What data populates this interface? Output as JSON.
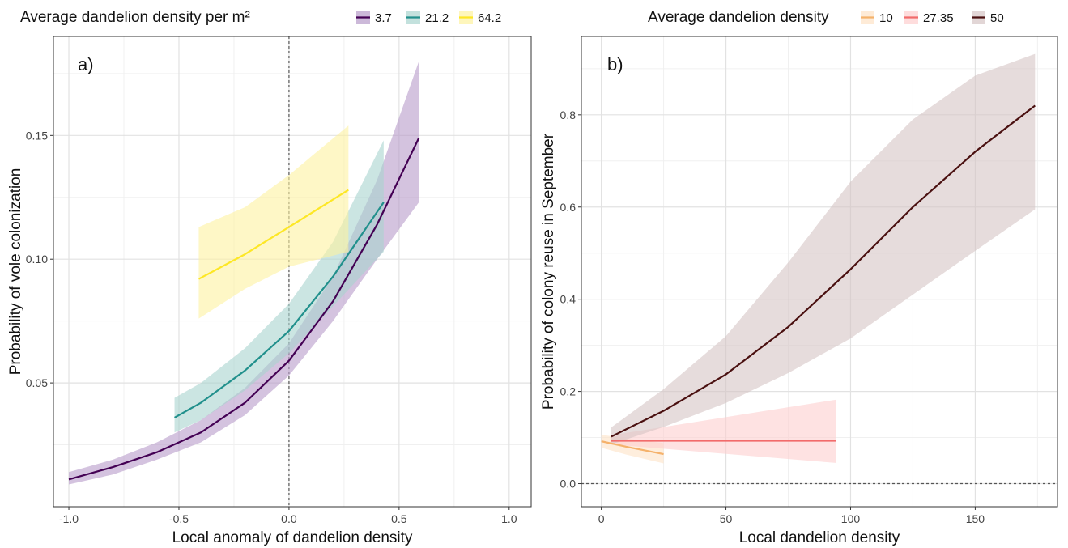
{
  "chart_data": [
    {
      "type": "line",
      "panel_label": "a)",
      "xlabel": "Local anomaly of dandelion density",
      "ylabel": "Probability of vole colonization",
      "xlim": [
        -1.07,
        1.1
      ],
      "ylim": [
        0.0,
        0.19
      ],
      "xticks": [
        -1.0,
        -0.5,
        0.0,
        0.5,
        1.0
      ],
      "xtick_labels": [
        "-1.0",
        "-0.5",
        "0.0",
        "0.5",
        "1.0"
      ],
      "yticks": [
        0.05,
        0.1,
        0.15
      ],
      "ytick_labels": [
        "0.05",
        "0.10",
        "0.15"
      ],
      "grid": true,
      "vline": 0.0,
      "legend": {
        "title": "Average dandelion density per m²",
        "position": "top"
      },
      "series": [
        {
          "name": "3.7",
          "color": "#440154",
          "band_color": "#b79bc9",
          "x": [
            -1.0,
            -0.8,
            -0.6,
            -0.4,
            -0.2,
            0.0,
            0.2,
            0.4,
            0.59
          ],
          "y": [
            0.011,
            0.016,
            0.022,
            0.03,
            0.042,
            0.059,
            0.083,
            0.114,
            0.149
          ],
          "lower": [
            0.009,
            0.013,
            0.019,
            0.026,
            0.037,
            0.053,
            0.075,
            0.1,
            0.123
          ],
          "upper": [
            0.014,
            0.019,
            0.026,
            0.035,
            0.048,
            0.066,
            0.093,
            0.132,
            0.18
          ]
        },
        {
          "name": "21.2",
          "color": "#21908c",
          "band_color": "#a9d4cf",
          "x": [
            -0.52,
            -0.4,
            -0.2,
            0.0,
            0.2,
            0.43
          ],
          "y": [
            0.036,
            0.042,
            0.055,
            0.071,
            0.093,
            0.123
          ],
          "lower": [
            0.03,
            0.035,
            0.047,
            0.062,
            0.081,
            0.103
          ],
          "upper": [
            0.044,
            0.05,
            0.064,
            0.082,
            0.107,
            0.148
          ]
        },
        {
          "name": "64.2",
          "color": "#fde725",
          "band_color": "#fdf2a0",
          "x": [
            -0.41,
            -0.2,
            0.0,
            0.27
          ],
          "y": [
            0.092,
            0.102,
            0.113,
            0.128
          ],
          "lower": [
            0.076,
            0.088,
            0.097,
            0.103
          ],
          "upper": [
            0.113,
            0.121,
            0.134,
            0.154
          ]
        }
      ]
    },
    {
      "type": "line",
      "panel_label": "b)",
      "xlabel": "Local dandelion density",
      "ylabel": "Probability of colony reuse in September",
      "xlim": [
        -8,
        183
      ],
      "ylim": [
        -0.05,
        0.97
      ],
      "xticks": [
        0,
        50,
        100,
        150
      ],
      "xtick_labels": [
        "0",
        "50",
        "100",
        "150"
      ],
      "yticks": [
        0.0,
        0.2,
        0.4,
        0.6,
        0.8
      ],
      "ytick_labels": [
        "0.0",
        "0.2",
        "0.4",
        "0.6",
        "0.8"
      ],
      "grid": true,
      "hline": 0.0,
      "legend": {
        "title": "Average dandelion density",
        "position": "top"
      },
      "series": [
        {
          "name": "10",
          "color": "#f5b26b",
          "band_color": "#fde3c6",
          "x": [
            0,
            10,
            25
          ],
          "y": [
            0.092,
            0.08,
            0.064
          ],
          "lower": [
            0.078,
            0.063,
            0.044
          ],
          "upper": [
            0.106,
            0.098,
            0.088
          ]
        },
        {
          "name": "27.35",
          "color": "#f26b6b",
          "band_color": "#fdcfcf",
          "x": [
            4,
            94
          ],
          "y": [
            0.093,
            0.093
          ],
          "lower": [
            0.085,
            0.045
          ],
          "upper": [
            0.105,
            0.182
          ]
        },
        {
          "name": "50",
          "color": "#4a1010",
          "band_color": "#d5c5c5",
          "x": [
            4,
            25,
            50,
            75,
            100,
            125,
            150,
            174
          ],
          "y": [
            0.102,
            0.158,
            0.237,
            0.34,
            0.465,
            0.6,
            0.72,
            0.82
          ],
          "lower": [
            0.085,
            0.123,
            0.175,
            0.24,
            0.315,
            0.41,
            0.505,
            0.595
          ],
          "upper": [
            0.122,
            0.205,
            0.32,
            0.48,
            0.655,
            0.79,
            0.885,
            0.932
          ]
        }
      ]
    }
  ]
}
